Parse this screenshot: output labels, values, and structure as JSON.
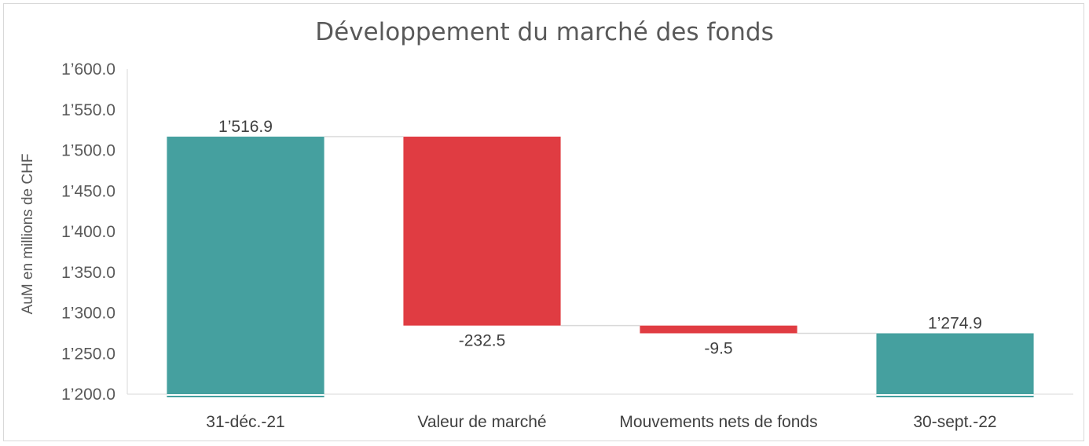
{
  "chart_data": {
    "type": "bar",
    "subtype": "waterfall",
    "title": "Développement du marché des fonds",
    "ylabel": "AuM en millions de CHF",
    "xlabel": "",
    "ylim": [
      1200,
      1600
    ],
    "y_ticks": [
      "1’200.0",
      "1’250.0",
      "1’300.0",
      "1’350.0",
      "1’400.0",
      "1’450.0",
      "1’500.0",
      "1’550.0",
      "1’600.0"
    ],
    "categories": [
      "31-déc.-21",
      "Valeur de marché",
      "Mouvements nets de fonds",
      "30-sept.-22"
    ],
    "values": [
      1516.9,
      -232.5,
      -9.5,
      1274.9
    ],
    "kinds": [
      "total",
      "delta",
      "delta",
      "total"
    ],
    "data_labels": [
      "1’516.9",
      "-232.5",
      "-9.5",
      "1’274.9"
    ],
    "colors": {
      "total": "#45a09f",
      "decrease": "#e03c42",
      "connector": "#d9d9d9",
      "axis": "#d9d9d9"
    },
    "grid": false,
    "legend": "none"
  }
}
